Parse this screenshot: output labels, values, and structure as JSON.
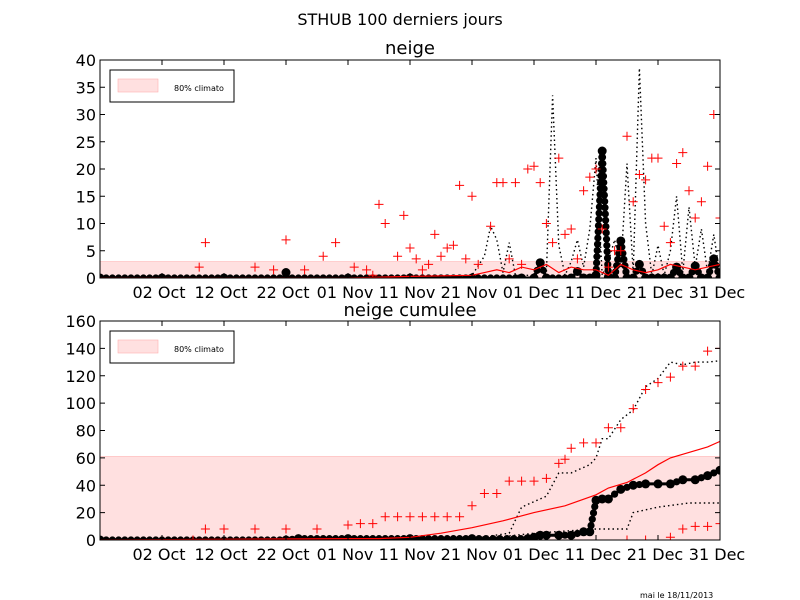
{
  "figure": {
    "suptitle": "STHUB 100 derniers jours",
    "footer": "mai le 18/11/2013"
  },
  "chart_data": [
    {
      "type": "line",
      "title": "neige",
      "xlabel": "",
      "ylabel": "",
      "xlim": [
        0,
        100
      ],
      "ylim": [
        0,
        40
      ],
      "yticks": [
        0,
        5,
        10,
        15,
        20,
        25,
        30,
        35,
        40
      ],
      "xticks": [
        {
          "x": 10,
          "label": "02 Oct"
        },
        {
          "x": 20,
          "label": "12 Oct"
        },
        {
          "x": 30,
          "label": "22 Oct"
        },
        {
          "x": 40,
          "label": "01 Nov"
        },
        {
          "x": 50,
          "label": "11 Nov"
        },
        {
          "x": 60,
          "label": "21 Nov"
        },
        {
          "x": 70,
          "label": "01 Dec"
        },
        {
          "x": 80,
          "label": "11 Dec"
        },
        {
          "x": 90,
          "label": "21 Dec"
        },
        {
          "x": 100,
          "label": "31 Dec"
        }
      ],
      "band": {
        "label": "80% climato",
        "ymin": 0,
        "ymax": 3,
        "color": "#ffe0e0"
      },
      "legend": "top-left",
      "series": [
        {
          "name": "observed",
          "style": "black-thick-dots",
          "color": "#000000",
          "x": [
            0,
            10,
            20,
            30,
            40,
            50,
            60,
            68,
            70,
            71,
            72,
            76,
            77,
            78,
            79,
            80,
            81,
            82,
            83,
            84,
            85,
            86,
            87,
            88,
            89,
            90,
            91,
            92,
            93,
            94,
            95,
            96,
            97,
            98,
            99,
            100,
            101,
            102
          ],
          "y": [
            0,
            0,
            0,
            0,
            0,
            0,
            0,
            0,
            0,
            2.8,
            0,
            0,
            1.2,
            0,
            0,
            0.5,
            23.3,
            0.2,
            0,
            6.8,
            0,
            0,
            2.5,
            0,
            0,
            0,
            0,
            0,
            2,
            0,
            0,
            2.2,
            0,
            0,
            3.5,
            0,
            0,
            0
          ]
        },
        {
          "name": "obs-marker-oct",
          "style": "black-thick-dots",
          "color": "#000000",
          "x": [
            30
          ],
          "y": [
            1.0
          ]
        },
        {
          "name": "percentile-90",
          "style": "black-dotted",
          "color": "#000000",
          "x": [
            0,
            55,
            60,
            62,
            63,
            64,
            65,
            66,
            67,
            70,
            71,
            72,
            73,
            74,
            75,
            76,
            77,
            78,
            79,
            80,
            81,
            82,
            83,
            84,
            85,
            86,
            87,
            88,
            89,
            90,
            91,
            92,
            93,
            94,
            95,
            96,
            97,
            98,
            99,
            100,
            101,
            102
          ],
          "y": [
            0,
            0,
            0.5,
            4,
            9.5,
            7,
            1,
            6.5,
            0.5,
            0.5,
            3,
            1,
            33.5,
            6,
            0.5,
            3,
            7,
            2,
            9,
            22,
            0.5,
            3,
            7,
            2,
            21,
            1,
            38.5,
            10,
            0.5,
            6,
            0.5,
            5,
            15,
            1,
            13,
            2,
            9,
            1,
            8,
            0.5,
            7,
            2
          ]
        },
        {
          "name": "median",
          "style": "red-line",
          "color": "#ff0000",
          "x": [
            0,
            40,
            50,
            60,
            62,
            64,
            66,
            68,
            70,
            72,
            74,
            76,
            78,
            80,
            82,
            84,
            86,
            88,
            90,
            92,
            94,
            96,
            98,
            100,
            102
          ],
          "y": [
            0,
            0,
            0.3,
            0.5,
            1,
            1.5,
            1,
            2,
            1.5,
            2.5,
            1,
            2,
            1.5,
            1.5,
            0.5,
            2.5,
            1.5,
            1,
            1.5,
            2.5,
            2,
            1.5,
            2,
            2.5,
            2
          ]
        },
        {
          "name": "max-obs",
          "style": "red-plus",
          "color": "#ff0000",
          "x": [
            16,
            17,
            25,
            28,
            30,
            33,
            36,
            38,
            41,
            43,
            44,
            45,
            46,
            48,
            49,
            50,
            51,
            52,
            53,
            54,
            55,
            56,
            57,
            58,
            59,
            60,
            61,
            63,
            64,
            65,
            66,
            67,
            68,
            69,
            70,
            71,
            72,
            73,
            74,
            75,
            76,
            77,
            78,
            79,
            80,
            81,
            82,
            83,
            84,
            85,
            86,
            87,
            88,
            89,
            90,
            91,
            92,
            93,
            94,
            95,
            96,
            97,
            98,
            99,
            100,
            101
          ],
          "y": [
            2,
            6.5,
            2,
            1.5,
            7,
            1.5,
            4,
            6.5,
            2,
            1.5,
            0.5,
            13.5,
            10,
            4,
            11.5,
            5.5,
            3.5,
            1.5,
            2.5,
            8,
            4,
            5.5,
            6,
            17,
            3.5,
            15,
            2.5,
            9.5,
            17.5,
            17.5,
            3.5,
            17.5,
            2.5,
            20,
            20.5,
            17.5,
            10,
            6.5,
            22,
            8,
            9,
            3.5,
            16,
            18.5,
            20,
            9,
            2,
            5,
            5,
            26,
            14,
            19,
            18,
            22,
            22,
            9.5,
            6.5,
            21,
            23,
            16,
            11,
            14,
            20.5,
            30,
            11,
            19
          ]
        }
      ]
    },
    {
      "type": "line",
      "title": "neige cumulee",
      "xlabel": "",
      "ylabel": "",
      "xlim": [
        0,
        100
      ],
      "ylim": [
        0,
        160
      ],
      "yticks": [
        0,
        20,
        40,
        60,
        80,
        100,
        120,
        140,
        160
      ],
      "xticks": [
        {
          "x": 10,
          "label": "02 Oct"
        },
        {
          "x": 20,
          "label": "12 Oct"
        },
        {
          "x": 30,
          "label": "22 Oct"
        },
        {
          "x": 40,
          "label": "01 Nov"
        },
        {
          "x": 50,
          "label": "11 Nov"
        },
        {
          "x": 60,
          "label": "21 Nov"
        },
        {
          "x": 70,
          "label": "01 Dec"
        },
        {
          "x": 80,
          "label": "11 Dec"
        },
        {
          "x": 90,
          "label": "21 Dec"
        },
        {
          "x": 100,
          "label": "31 Dec"
        }
      ],
      "band": {
        "label": "80% climato",
        "ymin": 0,
        "ymax": 61,
        "color": "#ffe0e0"
      },
      "legend": "top-left",
      "series": [
        {
          "name": "observed-cumul",
          "style": "black-thick-dots",
          "color": "#000000",
          "x": [
            0,
            30,
            32,
            40,
            50,
            60,
            69,
            70,
            71,
            72,
            74,
            76,
            78,
            79,
            80,
            81,
            82,
            84,
            86,
            88,
            90,
            92,
            94,
            96,
            98,
            100,
            102
          ],
          "y": [
            0,
            0,
            1,
            1,
            1,
            1,
            1,
            2,
            3.5,
            3.5,
            3.5,
            3.5,
            6,
            6,
            29,
            30,
            30,
            37,
            40,
            41,
            41,
            41,
            44,
            44,
            47,
            51,
            52
          ]
        },
        {
          "name": "percentile-10-cumul",
          "style": "black-dotted",
          "color": "#000000",
          "x": [
            0,
            60,
            70,
            80,
            85,
            86,
            90,
            95,
            100,
            102
          ],
          "y": [
            0,
            0,
            5,
            8,
            8,
            20,
            24,
            27,
            27,
            20
          ]
        },
        {
          "name": "percentile-90-cumul",
          "style": "black-dotted",
          "color": "#000000",
          "x": [
            0,
            60,
            66,
            68,
            72,
            74,
            76,
            79,
            80,
            81,
            82,
            84,
            86,
            88,
            90,
            92,
            94,
            96,
            98,
            100,
            102
          ],
          "y": [
            0,
            1,
            5,
            24,
            32,
            49,
            49,
            55,
            60,
            74,
            74,
            88,
            95,
            112,
            118,
            130,
            128,
            130,
            130,
            131,
            150
          ]
        },
        {
          "name": "median-cumul",
          "style": "red-line",
          "color": "#ff0000",
          "x": [
            0,
            40,
            45,
            50,
            55,
            60,
            65,
            70,
            75,
            80,
            82,
            85,
            88,
            90,
            92,
            95,
            98,
            100,
            102
          ],
          "y": [
            0,
            1,
            1,
            2,
            5,
            9,
            14,
            20,
            25,
            33,
            38,
            42,
            49,
            55,
            60,
            64,
            68,
            72,
            75
          ]
        },
        {
          "name": "max-cumul",
          "style": "red-plus",
          "color": "#ff0000",
          "x": [
            15,
            17,
            20,
            25,
            30,
            35,
            40,
            42,
            44,
            46,
            48,
            50,
            52,
            54,
            56,
            58,
            60,
            62,
            64,
            66,
            68,
            70,
            72,
            74,
            75,
            76,
            78,
            80,
            82,
            84,
            86,
            88,
            90,
            92,
            94,
            96,
            98,
            100,
            102
          ],
          "y": [
            0,
            8,
            8,
            8,
            8,
            8,
            11,
            12,
            12,
            17,
            17,
            17,
            17,
            17,
            17,
            17,
            25,
            34,
            34,
            43,
            43,
            43,
            45,
            56,
            59,
            67,
            71,
            71,
            82,
            82,
            96,
            110,
            115,
            119,
            127,
            127,
            138,
            140,
            150
          ]
        },
        {
          "name": "min-cumul",
          "style": "red-plus",
          "color": "#ff0000",
          "x": [
            0,
            80,
            85,
            88,
            90,
            92,
            94,
            96,
            98,
            100,
            102
          ],
          "y": [
            0,
            0,
            0,
            0,
            0,
            2,
            8,
            10,
            10,
            12,
            14
          ]
        }
      ]
    }
  ]
}
